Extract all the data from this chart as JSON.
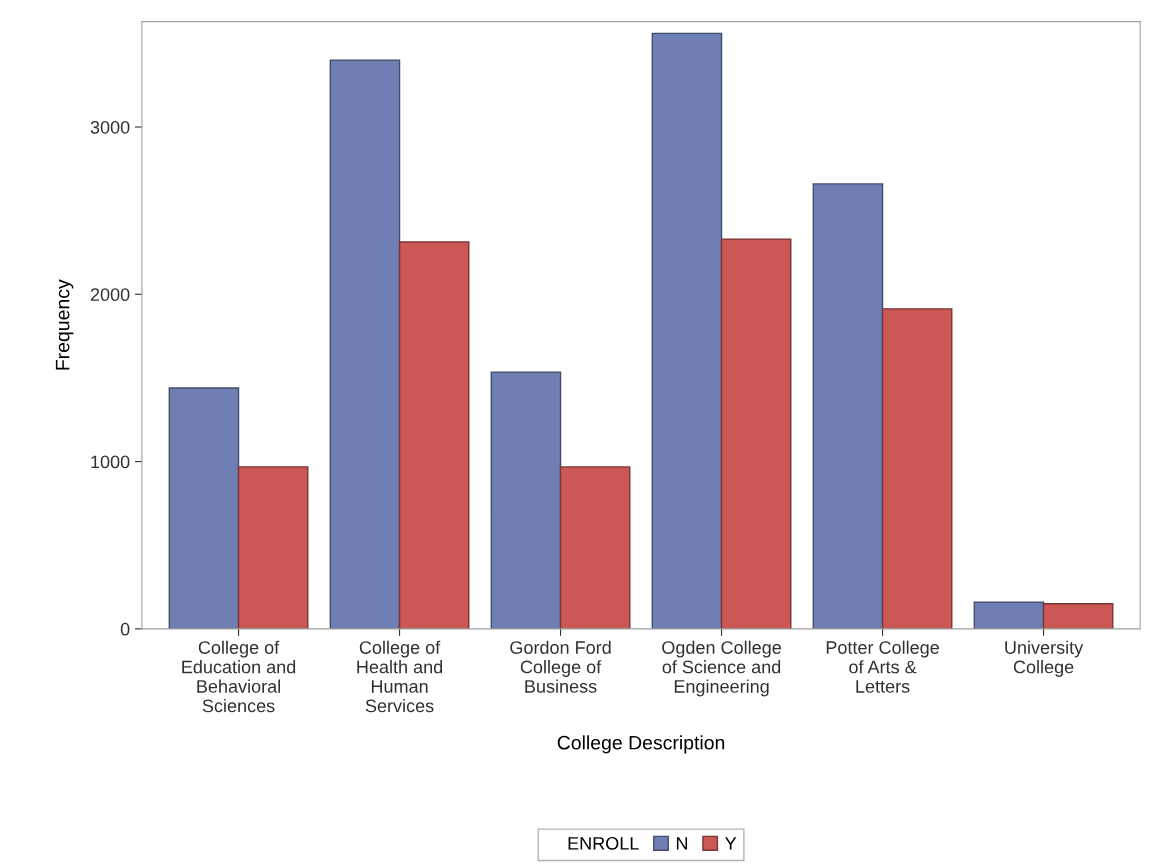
{
  "chart_data": {
    "type": "bar",
    "xlabel": "College Description",
    "ylabel": "Frequency",
    "legend_title": "ENROLL",
    "categories": [
      "College of\nEducation and\nBehavioral\nSciences",
      "College of\nHealth and\nHuman\nServices",
      "Gordon Ford\nCollege of\nBusiness",
      "Ogden College\nof Science and\nEngineering",
      "Potter College\nof Arts &\nLetters",
      "University\nCollege"
    ],
    "series": [
      {
        "name": "N",
        "color": "#6f7eb3",
        "values": [
          1440,
          3400,
          1535,
          3560,
          2660,
          160
        ]
      },
      {
        "name": "Y",
        "color": "#cc5856",
        "values": [
          968,
          2313,
          968,
          2330,
          1913,
          150
        ]
      }
    ],
    "ylim": [
      0,
      3630
    ],
    "yticks": [
      0,
      1000,
      2000,
      3000
    ],
    "grid": false,
    "legend": "bottom"
  }
}
